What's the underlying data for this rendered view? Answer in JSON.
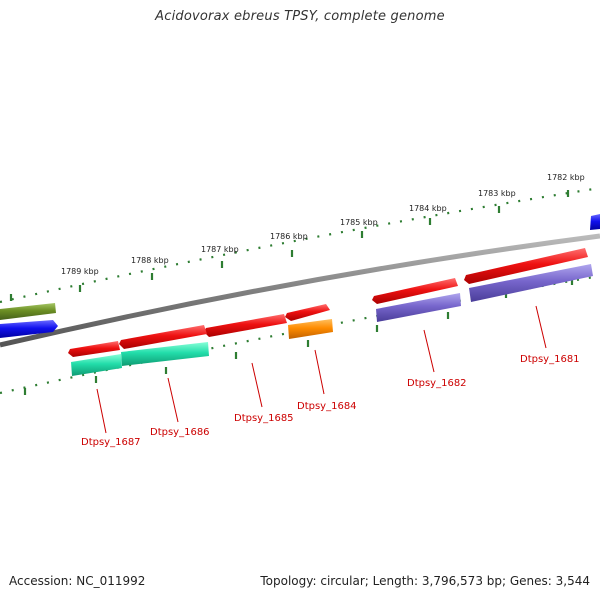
{
  "title": "Acidovorax ebreus TPSY, complete genome",
  "footer": {
    "accession": "Accession: NC_011992",
    "topology": "Topology: circular; Length: 3,796,573 bp; Genes: 3,544"
  },
  "colors": {
    "backbone": "#808080",
    "cds_red": "#ee1111",
    "cds_orange": "#ff8c00",
    "cds_teal": "#22ddaa",
    "cds_purple": "#7766cc",
    "cds_blue": "#1111ee",
    "cds_olive": "#6b8e23",
    "tick": "#2e7d32",
    "label": "#cc0000"
  },
  "axis": {
    "ticks": [
      {
        "label": "1782 kbp"
      },
      {
        "label": "1783 kbp"
      },
      {
        "label": "1784 kbp"
      },
      {
        "label": "1785 kbp"
      },
      {
        "label": "1786 kbp"
      },
      {
        "label": "1787 kbp"
      },
      {
        "label": "1788 kbp"
      },
      {
        "label": "1789 kbp"
      }
    ]
  },
  "genes": [
    {
      "name": "Dtpsy_1681"
    },
    {
      "name": "Dtpsy_1682"
    },
    {
      "name": "Dtpsy_1684"
    },
    {
      "name": "Dtpsy_1685"
    },
    {
      "name": "Dtpsy_1686"
    },
    {
      "name": "Dtpsy_1687"
    }
  ]
}
